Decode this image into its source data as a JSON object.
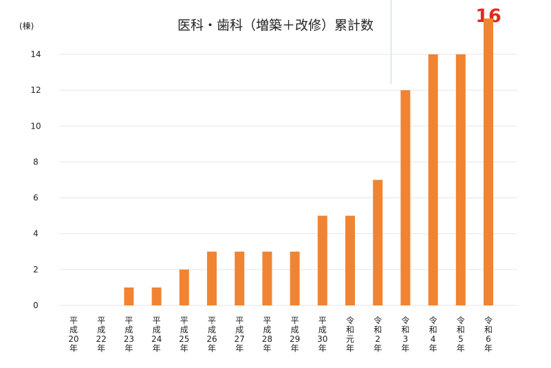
{
  "chart_data": {
    "type": "bar",
    "title": "医科・歯科（増築＋改修）累計数",
    "ylabel": "(棟)",
    "ylim": [
      0,
      15
    ],
    "yticks": [
      0,
      2,
      4,
      6,
      8,
      10,
      12,
      14
    ],
    "grid": true,
    "categories": [
      "平成20年",
      "平成22年",
      "平成23年",
      "平成24年",
      "平成25年",
      "平成26年",
      "平成27年",
      "平成28年",
      "平成29年",
      "平成30年",
      "令和元年",
      "令和2年",
      "令和3年",
      "令和4年",
      "令和5年",
      "令和6年"
    ],
    "values": [
      0,
      0,
      1,
      1,
      2,
      3,
      3,
      3,
      3,
      5,
      5,
      7,
      12,
      14,
      14,
      16
    ],
    "highlight_label": "16",
    "colors": {
      "bar": "#f08432",
      "grid": "#e6e6e6",
      "highlight": "#e8281e",
      "text": "#222222"
    }
  }
}
